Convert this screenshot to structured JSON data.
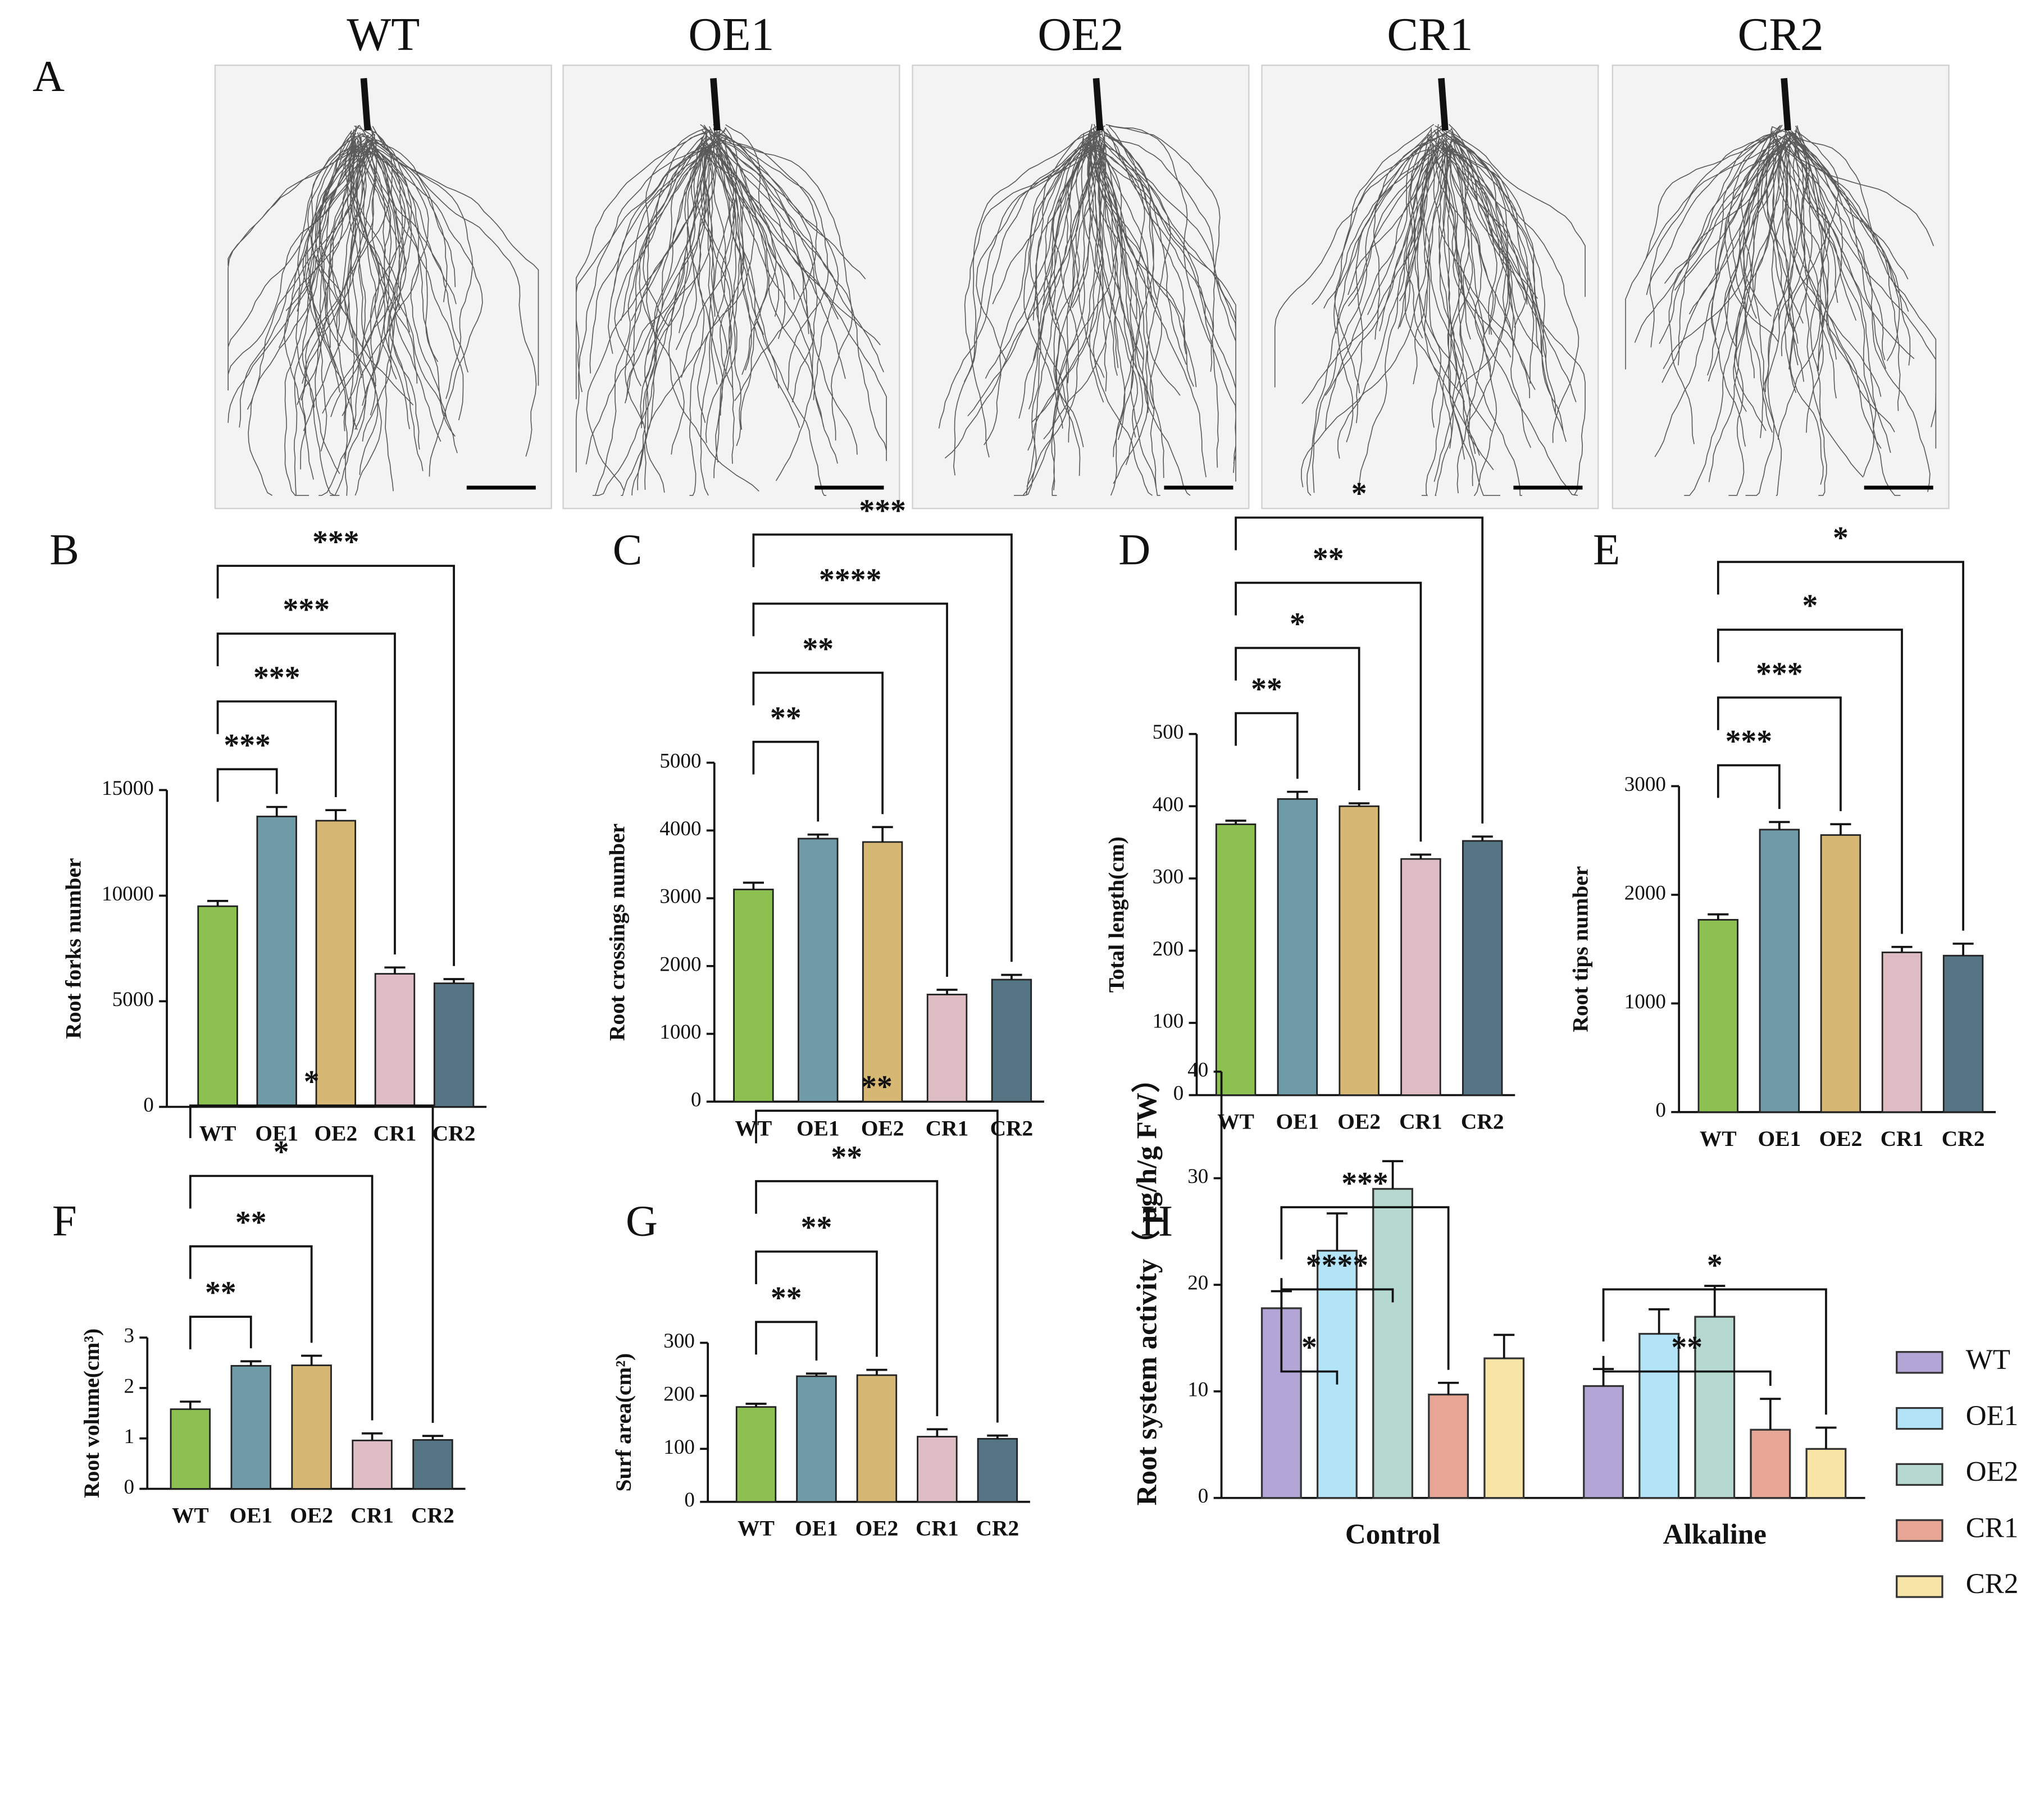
{
  "panel_a": {
    "panel_label": "A",
    "images": [
      "WT",
      "OE1",
      "OE2",
      "CR1",
      "CR2"
    ]
  },
  "chart_data": [
    {
      "type": "bar",
      "panel_label": "B",
      "ylabel": "Root forks number",
      "categories": [
        "WT",
        "OE1",
        "OE2",
        "CR1",
        "CR2"
      ],
      "values": [
        9500,
        13750,
        13550,
        6300,
        5850
      ],
      "errors": [
        250,
        450,
        500,
        300,
        200
      ],
      "colors": [
        "#8cc152",
        "#6f9aa8",
        "#d6b874",
        "#ddbcc4",
        "#557585"
      ],
      "ylim": [
        0,
        15000
      ],
      "yticks": [
        0,
        5000,
        10000,
        15000
      ],
      "brackets": [
        {
          "between": [
            "WT",
            "OE1"
          ],
          "label": "***"
        },
        {
          "between": [
            "WT",
            "OE2"
          ],
          "label": "***"
        },
        {
          "between": [
            "WT",
            "CR1"
          ],
          "label": "***"
        },
        {
          "between": [
            "WT",
            "CR2"
          ],
          "label": "***"
        }
      ]
    },
    {
      "type": "bar",
      "panel_label": "C",
      "ylabel": "Root crossings number",
      "categories": [
        "WT",
        "OE1",
        "OE2",
        "CR1",
        "CR2"
      ],
      "values": [
        3130,
        3880,
        3830,
        1580,
        1800
      ],
      "errors": [
        100,
        60,
        220,
        70,
        70
      ],
      "colors": [
        "#8cc152",
        "#6f9aa8",
        "#d6b874",
        "#ddbcc4",
        "#557585"
      ],
      "ylim": [
        0,
        5000
      ],
      "yticks": [
        0,
        1000,
        2000,
        3000,
        4000,
        5000
      ],
      "brackets": [
        {
          "between": [
            "WT",
            "OE1"
          ],
          "label": "**"
        },
        {
          "between": [
            "WT",
            "OE2"
          ],
          "label": "**"
        },
        {
          "between": [
            "WT",
            "CR1"
          ],
          "label": "****"
        },
        {
          "between": [
            "WT",
            "CR2"
          ],
          "label": "***"
        }
      ]
    },
    {
      "type": "bar",
      "panel_label": "D",
      "ylabel": "Total length(cm)",
      "categories": [
        "WT",
        "OE1",
        "OE2",
        "CR1",
        "CR2"
      ],
      "values": [
        375,
        410,
        400,
        327,
        352
      ],
      "errors": [
        5,
        10,
        4,
        6,
        6
      ],
      "colors": [
        "#8cc152",
        "#6f9aa8",
        "#d6b874",
        "#ddbcc4",
        "#557585"
      ],
      "ylim": [
        0,
        500
      ],
      "yticks": [
        0,
        100,
        200,
        300,
        400,
        500
      ],
      "brackets": [
        {
          "between": [
            "WT",
            "OE1"
          ],
          "label": "**"
        },
        {
          "between": [
            "WT",
            "OE2"
          ],
          "label": "*"
        },
        {
          "between": [
            "WT",
            "CR1"
          ],
          "label": "**"
        },
        {
          "between": [
            "WT",
            "CR2"
          ],
          "label": "*"
        }
      ]
    },
    {
      "type": "bar",
      "panel_label": "E",
      "ylabel": "Root tips number",
      "categories": [
        "WT",
        "OE1",
        "OE2",
        "CR1",
        "CR2"
      ],
      "values": [
        1770,
        2600,
        2550,
        1470,
        1440
      ],
      "errors": [
        50,
        70,
        100,
        50,
        110
      ],
      "colors": [
        "#8cc152",
        "#6f9aa8",
        "#d6b874",
        "#ddbcc4",
        "#557585"
      ],
      "ylim": [
        0,
        3000
      ],
      "yticks": [
        0,
        1000,
        2000,
        3000
      ],
      "brackets": [
        {
          "between": [
            "WT",
            "OE1"
          ],
          "label": "***"
        },
        {
          "between": [
            "WT",
            "OE2"
          ],
          "label": "***"
        },
        {
          "between": [
            "WT",
            "CR1"
          ],
          "label": "*"
        },
        {
          "between": [
            "WT",
            "CR2"
          ],
          "label": "*"
        }
      ]
    },
    {
      "type": "bar",
      "panel_label": "F",
      "ylabel": "Root volume(cm³)",
      "categories": [
        "WT",
        "OE1",
        "OE2",
        "CR1",
        "CR2"
      ],
      "values": [
        1.58,
        2.44,
        2.45,
        0.96,
        0.97
      ],
      "errors": [
        0.15,
        0.09,
        0.19,
        0.14,
        0.08
      ],
      "colors": [
        "#8cc152",
        "#6f9aa8",
        "#d6b874",
        "#ddbcc4",
        "#557585"
      ],
      "ylim": [
        0,
        3
      ],
      "yticks": [
        0,
        1,
        2,
        3
      ],
      "brackets": [
        {
          "between": [
            "WT",
            "OE1"
          ],
          "label": "**"
        },
        {
          "between": [
            "WT",
            "OE2"
          ],
          "label": "**"
        },
        {
          "between": [
            "WT",
            "CR1"
          ],
          "label": "*"
        },
        {
          "between": [
            "WT",
            "CR2"
          ],
          "label": "*"
        }
      ]
    },
    {
      "type": "bar",
      "panel_label": "G",
      "ylabel": "Surf area(cm²)",
      "categories": [
        "WT",
        "OE1",
        "OE2",
        "CR1",
        "CR2"
      ],
      "values": [
        179,
        237,
        239,
        123,
        119
      ],
      "errors": [
        6,
        5,
        10,
        14,
        6
      ],
      "colors": [
        "#8cc152",
        "#6f9aa8",
        "#d6b874",
        "#ddbcc4",
        "#557585"
      ],
      "ylim": [
        0,
        300
      ],
      "yticks": [
        0,
        100,
        200,
        300
      ],
      "brackets": [
        {
          "between": [
            "WT",
            "OE1"
          ],
          "label": "**"
        },
        {
          "between": [
            "WT",
            "OE2"
          ],
          "label": "**"
        },
        {
          "between": [
            "WT",
            "CR1"
          ],
          "label": "**"
        },
        {
          "between": [
            "WT",
            "CR2"
          ],
          "label": "**"
        }
      ]
    },
    {
      "type": "grouped_bar",
      "panel_label": "H",
      "ylabel": "Root system activity（ μg/h/g FW）",
      "categories": [
        "Control",
        "Alkaline"
      ],
      "series": [
        {
          "name": "WT",
          "color": "#b3a6d6",
          "values": [
            17.8,
            10.5
          ],
          "errors": [
            1.6,
            1.6
          ]
        },
        {
          "name": "OE1",
          "color": "#b3e3f7",
          "values": [
            23.2,
            15.4
          ],
          "errors": [
            3.5,
            2.3
          ]
        },
        {
          "name": "OE2",
          "color": "#b5d9cf",
          "values": [
            29,
            17
          ],
          "errors": [
            2.6,
            2.9
          ]
        },
        {
          "name": "CR1",
          "color": "#e8a796",
          "values": [
            9.7,
            6.4
          ],
          "errors": [
            1.1,
            2.9
          ]
        },
        {
          "name": "CR2",
          "color": "#f8e5a6",
          "values": [
            13.1,
            4.6
          ],
          "errors": [
            2.2,
            2
          ]
        }
      ],
      "ylim": [
        0,
        40
      ],
      "yticks": [
        0,
        10,
        20,
        30,
        40
      ],
      "brackets": [
        {
          "group": "Control",
          "between": [
            "WT",
            "OE1"
          ],
          "label": "*"
        },
        {
          "group": "Control",
          "between": [
            "WT",
            "OE2"
          ],
          "label": "****"
        },
        {
          "group": "Control",
          "between": [
            "WT",
            "CR1"
          ],
          "label": "***"
        },
        {
          "group": "Alkaline",
          "between": [
            "WT",
            "CR1"
          ],
          "label": "**"
        },
        {
          "group": "Alkaline",
          "between": [
            "WT",
            "CR2"
          ],
          "label": "*"
        }
      ]
    }
  ]
}
